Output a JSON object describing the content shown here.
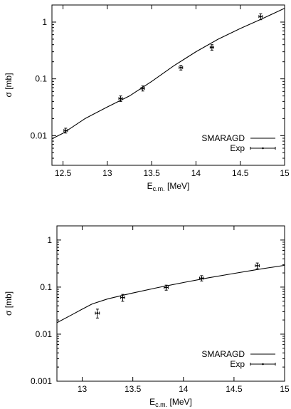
{
  "chart_data": [
    {
      "type": "line",
      "xlabel": {
        "base": "E",
        "sub": "c.m.",
        "unit": " [MeV]"
      },
      "ylabel": "σ [mb]",
      "xscale": "linear",
      "yscale": "log",
      "xlim": [
        12.375,
        15
      ],
      "ylim": [
        0.003,
        2
      ],
      "xticks": [
        12.5,
        13,
        13.5,
        14,
        14.5,
        15
      ],
      "xtick_labels": [
        "12.5",
        "13",
        "13.5",
        "14",
        "14.5",
        "15"
      ],
      "yticks": [
        0.01,
        0.1,
        1
      ],
      "ytick_labels": [
        "0.01",
        "0.1",
        "1"
      ],
      "grid": false,
      "legend_position": "bottom-right",
      "series": [
        {
          "name": "SMARAGD",
          "kind": "line",
          "x": [
            12.375,
            12.5,
            12.75,
            13.0,
            13.25,
            13.5,
            13.75,
            14.0,
            14.25,
            14.5,
            14.75,
            15.0
          ],
          "y": [
            0.0088,
            0.011,
            0.02,
            0.032,
            0.05,
            0.09,
            0.17,
            0.3,
            0.5,
            0.77,
            1.15,
            1.75
          ]
        },
        {
          "name": "Exp",
          "kind": "errorbar",
          "x": [
            12.53,
            13.15,
            13.4,
            13.83,
            14.18,
            14.73
          ],
          "y": [
            0.0123,
            0.045,
            0.068,
            0.158,
            0.36,
            1.25
          ],
          "xerr": [
            0.02,
            0.02,
            0.02,
            0.02,
            0.02,
            0.02
          ],
          "yerr_low": [
            0.0012,
            0.005,
            0.007,
            0.015,
            0.04,
            0.15
          ],
          "yerr_high": [
            0.0012,
            0.005,
            0.007,
            0.015,
            0.04,
            0.15
          ]
        }
      ]
    },
    {
      "type": "line",
      "xlabel": {
        "base": "E",
        "sub": "c.m.",
        "unit": " [MeV]"
      },
      "ylabel": "σ [mb]",
      "xscale": "linear",
      "yscale": "log",
      "xlim": [
        12.75,
        15
      ],
      "ylim": [
        0.001,
        2
      ],
      "xticks": [
        13,
        13.5,
        14,
        14.5,
        15
      ],
      "xtick_labels": [
        "13",
        "13.5",
        "14",
        "14.5",
        "15"
      ],
      "yticks": [
        0.001,
        0.01,
        0.1,
        1
      ],
      "ytick_labels": [
        "0.001",
        "0.01",
        "0.1",
        "1"
      ],
      "grid": false,
      "legend_position": "bottom-right",
      "series": [
        {
          "name": "SMARAGD",
          "kind": "line",
          "x": [
            12.75,
            12.9,
            13.0,
            13.1,
            13.25,
            13.4,
            13.5,
            13.75,
            14.0,
            14.25,
            14.5,
            14.75,
            15.0
          ],
          "y": [
            0.0175,
            0.026,
            0.034,
            0.044,
            0.056,
            0.067,
            0.075,
            0.098,
            0.125,
            0.158,
            0.195,
            0.24,
            0.29
          ]
        },
        {
          "name": "Exp",
          "kind": "errorbar",
          "x": [
            13.15,
            13.4,
            13.83,
            14.18,
            14.73
          ],
          "y": [
            0.028,
            0.06,
            0.098,
            0.155,
            0.285
          ],
          "xerr": [
            0.02,
            0.02,
            0.02,
            0.02,
            0.02
          ],
          "yerr_low": [
            0.006,
            0.01,
            0.012,
            0.02,
            0.04
          ],
          "yerr_high": [
            0.006,
            0.01,
            0.012,
            0.02,
            0.04
          ]
        }
      ]
    }
  ]
}
